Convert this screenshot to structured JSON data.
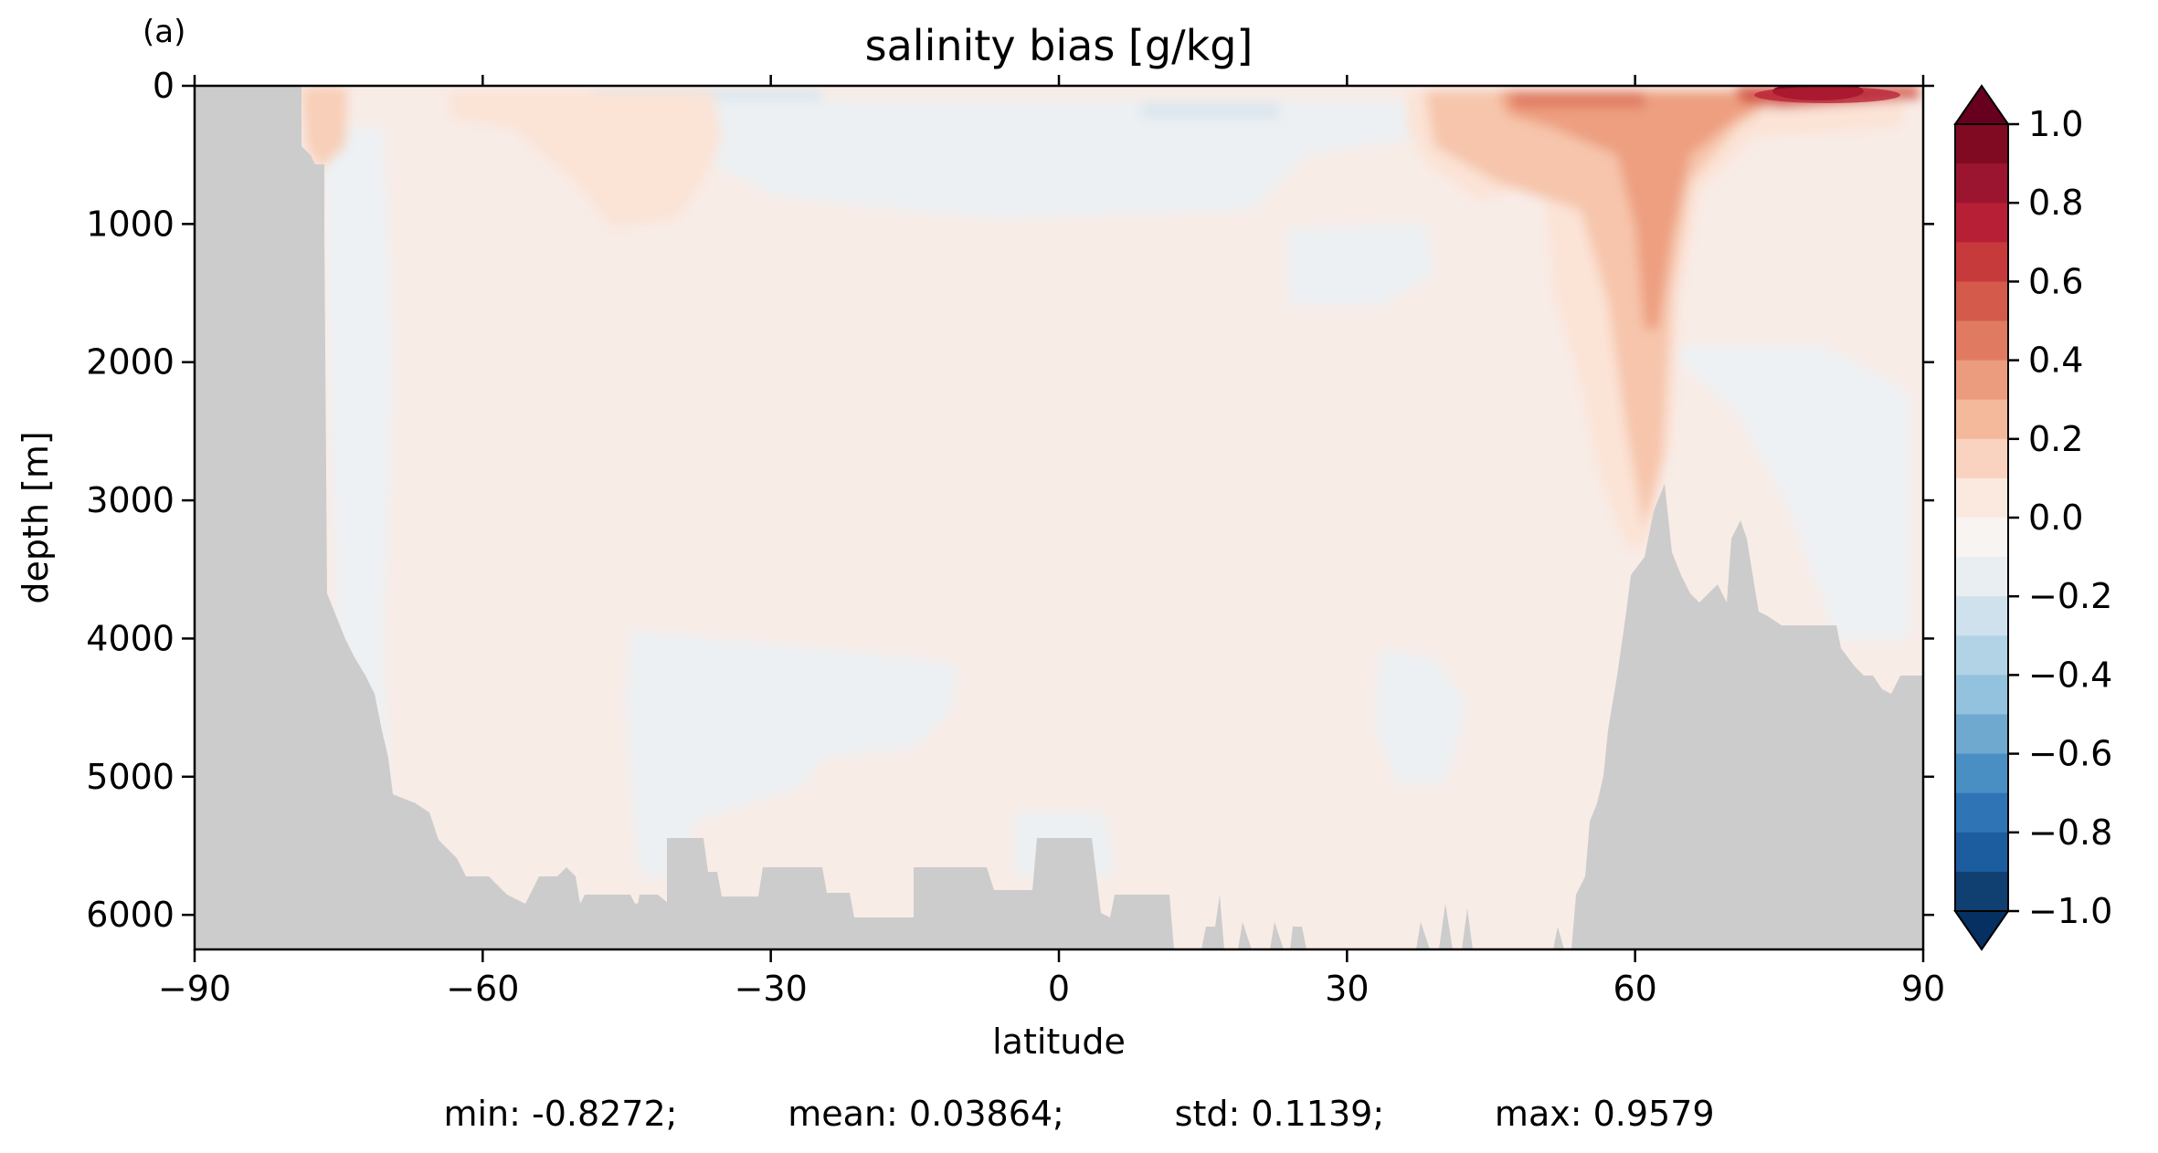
{
  "panel_label": "(a)",
  "chart_data": {
    "type": "heatmap",
    "title": "salinity bias [g/kg]",
    "xlabel": "latitude",
    "ylabel": "depth [m]",
    "xlim": [
      -90,
      90
    ],
    "ylim": [
      6250,
      0
    ],
    "y_inverted": true,
    "x_ticks": [
      -90,
      -60,
      -30,
      0,
      30,
      60,
      90
    ],
    "x_tick_labels": [
      "−90",
      "−60",
      "−30",
      "0",
      "30",
      "60",
      "90"
    ],
    "y_ticks": [
      0,
      1000,
      2000,
      3000,
      4000,
      5000,
      6000
    ],
    "y_tick_labels": [
      "0",
      "1000",
      "2000",
      "3000",
      "4000",
      "5000",
      "6000"
    ],
    "colormap": "RdBu_r",
    "colorbar": {
      "ticks": [
        1.0,
        0.8,
        0.6,
        0.4,
        0.2,
        0.0,
        -0.2,
        -0.4,
        -0.6,
        -0.8,
        -1.0
      ],
      "tick_labels": [
        "1.0",
        "0.8",
        "0.6",
        "0.4",
        "0.2",
        "0.0",
        "−0.2",
        "−0.4",
        "−0.6",
        "−0.8",
        "−1.0"
      ],
      "extend": "both",
      "levels": 20,
      "colors_high_to_low": [
        "#800a22",
        "#9b1530",
        "#b71f36",
        "#c63a3c",
        "#d45a4b",
        "#e07b62",
        "#ec9c7e",
        "#f4b89b",
        "#f9d3bf",
        "#fbe9df",
        "#f8f4f1",
        "#e8eef1",
        "#cfe1ec",
        "#b1d3e5",
        "#92c2de",
        "#6fa9d0",
        "#4a8fc3",
        "#2f75b5",
        "#1c5da0",
        "#103f72"
      ],
      "extend_high_color": "#67001f",
      "extend_low_color": "#053061"
    },
    "land_mask_color": "#cccccc",
    "stats": {
      "min": "min: -0.8272;",
      "mean": "mean: 0.03864;",
      "std": "std: 0.1139;",
      "max": "max: 0.9579"
    }
  }
}
